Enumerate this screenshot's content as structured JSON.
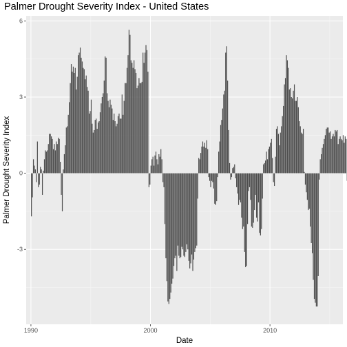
{
  "chart_data": {
    "type": "bar",
    "title": "Palmer Drought Severity Index - United States",
    "xlabel": "Date",
    "ylabel": "Palmer Drought Severity Index",
    "x_range": [
      1989.6,
      2016.1
    ],
    "y_range": [
      -5.95,
      6.2
    ],
    "x_ticks": [
      1990,
      2000,
      2010
    ],
    "y_ticks": [
      -3,
      0,
      3,
      6
    ],
    "x_tick_labels": [
      "1990",
      "2000",
      "2010"
    ],
    "y_tick_labels": [
      "-3",
      "0",
      "3",
      "6"
    ],
    "grid": true,
    "colors": {
      "bars": "#4d4d4d",
      "panel": "#ebebeb",
      "grid_major": "#ffffff",
      "grid_minor": "#f5f5f5"
    },
    "series": [
      {
        "x_start": 1990.0,
        "x_step": 0.0833333,
        "values": [
          -1.7,
          -0.95,
          0.55,
          0.3,
          0.15,
          -0.35,
          1.25,
          -0.55,
          -0.45,
          0.25,
          0.15,
          -0.85,
          0.1,
          0.55,
          0.9,
          0.85,
          0.9,
          1.15,
          1.55,
          1.55,
          1.45,
          1.35,
          0.95,
          1.15,
          0.9,
          1.25,
          1.15,
          1.4,
          1.35,
          0.45,
          -0.85,
          -1.5,
          0.15,
          0.75,
          1.1,
          1.8,
          1.85,
          2.3,
          2.8,
          3.55,
          4.3,
          4.0,
          4.2,
          3.95,
          4.15,
          3.3,
          3.8,
          4.65,
          4.75,
          4.95,
          4.55,
          4.4,
          4.15,
          4.1,
          3.7,
          3.85,
          3.4,
          3.25,
          2.35,
          2.45,
          2.9,
          1.95,
          1.6,
          1.7,
          2.1,
          2.15,
          1.75,
          2.0,
          2.05,
          2.4,
          2.75,
          3.0,
          3.15,
          3.65,
          4.6,
          4.55,
          3.15,
          2.85,
          2.6,
          2.9,
          2.7,
          2.55,
          2.1,
          2.35,
          2.05,
          1.85,
          1.95,
          2.25,
          2.35,
          2.15,
          2.15,
          3.1,
          2.3,
          2.85,
          3.55,
          3.55,
          4.15,
          4.65,
          5.65,
          5.45,
          4.45,
          4.35,
          4.15,
          4.45,
          4.1,
          3.95,
          3.35,
          3.45,
          3.75,
          3.55,
          3.55,
          3.6,
          4.75,
          4.35,
          4.75,
          5.05,
          4.85,
          4.0,
          -0.55,
          -0.45,
          0.3,
          0.55,
          0.65,
          0.3,
          0.7,
          0.85,
          0.55,
          0.35,
          0.75,
          0.65,
          0.95,
          0.55,
          -0.35,
          -0.55,
          -2.0,
          -3.35,
          -4.25,
          -5.05,
          -5.15,
          -4.95,
          -4.7,
          -4.35,
          -4.15,
          -3.65,
          -3.35,
          -3.25,
          -3.85,
          -2.85,
          -3.25,
          -3.35,
          -3.3,
          -2.9,
          -3.0,
          -3.25,
          -3.3,
          -3.1,
          -2.8,
          -3.0,
          -3.45,
          -3.75,
          -3.55,
          -3.2,
          -3.85,
          -3.4,
          -3.1,
          -2.95,
          -2.85,
          -1.0,
          0.6,
          0.55,
          0.8,
          1.05,
          1.25,
          1.05,
          1.2,
          1.0,
          1.3,
          0.95,
          -0.15,
          -0.3,
          -0.55,
          -0.3,
          -0.35,
          -0.6,
          -1.2,
          -1.25,
          -1.1,
          -0.15,
          0.85,
          1.25,
          1.9,
          2.1,
          2.55,
          3.1,
          3.25,
          4.75,
          5.0,
          3.65,
          1.7,
          0.4,
          -0.25,
          -0.15,
          0.2,
          0.25,
          0.35,
          -0.2,
          -0.55,
          -0.8,
          -1.25,
          -1.05,
          -1.15,
          -1.75,
          -2.2,
          -2.1,
          -3.1,
          -3.7,
          -3.65,
          -2.0,
          -0.7,
          -0.55,
          -1.05,
          -2.1,
          -2.15,
          -1.95,
          -1.45,
          -0.85,
          -1.75,
          -1.9,
          -1.15,
          -2.35,
          -2.45,
          -2.2,
          -1.0,
          0.35,
          0.4,
          0.5,
          0.85,
          0.55,
          0.95,
          1.05,
          1.2,
          1.35,
          0.6,
          -0.35,
          -0.5,
          0.65,
          1.75,
          1.85,
          1.55,
          1.1,
          1.6,
          1.85,
          2.25,
          2.65,
          3.5,
          3.75,
          4.65,
          4.45,
          4.15,
          3.3,
          3.35,
          3.0,
          2.95,
          3.25,
          3.5,
          2.85,
          2.85,
          3.0,
          2.6,
          2.05,
          1.85,
          1.6,
          1.55,
          1.75,
          0.05,
          -0.45,
          -0.75,
          -1.05,
          -1.45,
          -1.4,
          -2.1,
          -2.75,
          -3.15,
          -4.2,
          -4.95,
          -5.1,
          -5.25,
          -5.25,
          -4.05,
          -0.25,
          0.55,
          0.75,
          1.0,
          1.15,
          1.35,
          1.5,
          1.75,
          1.8,
          1.8,
          1.6,
          1.65,
          1.35,
          1.45,
          1.55,
          1.45,
          1.7,
          1.65,
          1.7,
          1.15,
          1.35,
          1.45,
          1.35,
          1.3,
          1.5,
          1.2,
          1.45,
          1.35,
          -0.3,
          -1.05,
          1.15,
          1.55,
          2.2,
          1.6,
          0.75,
          1.15
        ]
      }
    ]
  }
}
